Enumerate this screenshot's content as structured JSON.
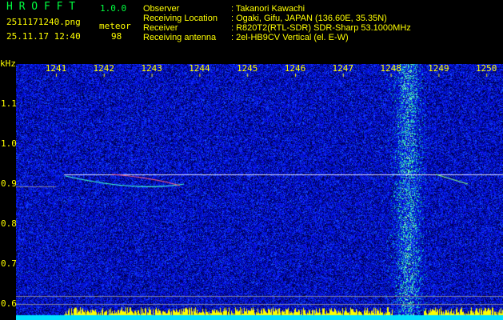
{
  "header": {
    "app_name": "H R O F F T",
    "version": "1.0.0",
    "filename": "2511171240.png",
    "datetime": "25.11.17 12:40",
    "detect_label": "meteor",
    "detect_count": "98",
    "info": [
      {
        "label": "Observer",
        "value": ": Takanori Kawachi"
      },
      {
        "label": "Receiving Location",
        "value": ": Ogaki, Gifu, JAPAN (136.60E, 35.35N)"
      },
      {
        "label": "Receiver",
        "value": ": R820T2(RTL-SDR) SDR-Sharp 53.1000MHz"
      },
      {
        "label": "Receiving antenna",
        "value": ": 2el-HB9CV Vertical (el. E-W)"
      }
    ]
  },
  "spectrogram": {
    "unit": "kHz",
    "x_ticks": [
      "1241",
      "1242",
      "1243",
      "1244",
      "1245",
      "1246",
      "1247",
      "1248",
      "1249",
      "1250"
    ],
    "y_ticks": [
      "1.1",
      "1.0",
      "0.9",
      "0.8",
      "0.7",
      "0.6"
    ],
    "colors": {
      "label": "#ffff00",
      "title": "#00ff40",
      "background_noise": "#0a1ea0",
      "level_bar": "#ffff00",
      "level_base": "#00e0ff"
    }
  }
}
